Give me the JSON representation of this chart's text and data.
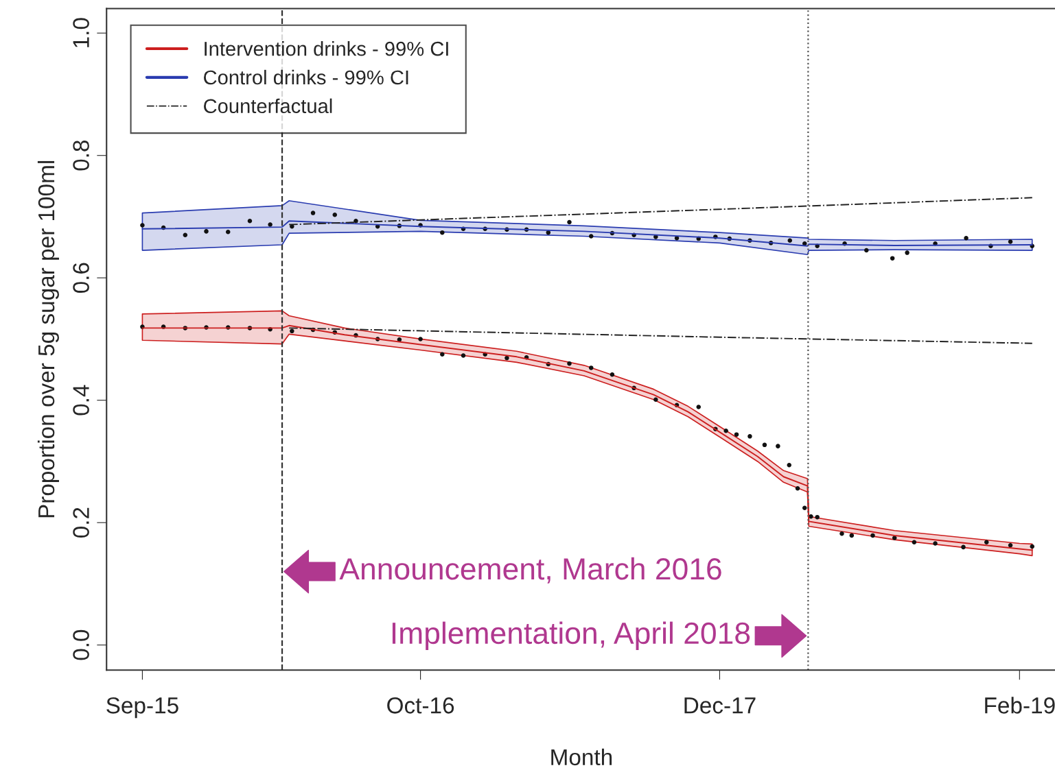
{
  "chart_data": {
    "type": "line",
    "xlabel": "Month",
    "ylabel": "Proportion over 5g sugar per 100ml",
    "xlim": [
      "2015-07-12",
      "2019-03-25"
    ],
    "xticks": [
      {
        "value": "2015-09-01",
        "label": "Sep-15"
      },
      {
        "value": "2016-10-01",
        "label": "Oct-16"
      },
      {
        "value": "2017-12-01",
        "label": "Dec-17"
      },
      {
        "value": "2019-02-01",
        "label": "Feb-19"
      }
    ],
    "ylim": [
      -0.041,
      1.04
    ],
    "yticks": [
      {
        "value": 0,
        "label": "0.0"
      },
      0.2,
      0.4,
      0.6,
      0.8,
      {
        "value": 1,
        "label": "1.0"
      }
    ],
    "grid": false,
    "legend": "top left",
    "series": [
      {
        "name": "Intervention drinks - 99% CI",
        "color": "#cc1f1f",
        "line_style": "solid",
        "x": [
          "2015-09-01",
          "2016-03-18",
          "2016-03-28",
          "2016-06-15",
          "2016-10-01",
          "2017-02-15",
          "2017-05-22",
          "2017-08-29",
          "2017-10-17",
          "2017-12-01",
          "2018-01-24",
          "2018-03-02",
          "2018-04-05",
          "2018-04-07",
          "2018-08-07",
          "2019-02-01",
          "2019-02-19"
        ],
        "values": [
          0.518,
          0.518,
          0.522,
          0.507,
          0.491,
          0.471,
          0.448,
          0.409,
          0.381,
          0.348,
          0.308,
          0.275,
          0.26,
          0.202,
          0.179,
          0.157,
          0.155
        ],
        "lower": [
          0.498,
          0.492,
          0.508,
          0.497,
          0.482,
          0.462,
          0.44,
          0.401,
          0.373,
          0.34,
          0.3,
          0.266,
          0.25,
          0.194,
          0.172,
          0.149,
          0.146
        ],
        "upper": [
          0.541,
          0.546,
          0.538,
          0.518,
          0.5,
          0.48,
          0.457,
          0.418,
          0.39,
          0.357,
          0.317,
          0.285,
          0.272,
          0.21,
          0.187,
          0.166,
          0.165
        ]
      },
      {
        "name": "Control drinks - 99% CI",
        "color": "#2a3cb0",
        "line_style": "solid",
        "x": [
          "2015-09-01",
          "2016-03-18",
          "2016-03-28",
          "2016-10-01",
          "2017-05-22",
          "2017-12-01",
          "2018-04-05",
          "2018-04-07",
          "2018-08-07",
          "2019-02-19"
        ],
        "values": [
          0.68,
          0.683,
          0.693,
          0.684,
          0.676,
          0.665,
          0.652,
          0.655,
          0.653,
          0.654
        ],
        "lower": [
          0.645,
          0.654,
          0.673,
          0.676,
          0.668,
          0.657,
          0.638,
          0.645,
          0.646,
          0.645
        ],
        "upper": [
          0.706,
          0.718,
          0.726,
          0.694,
          0.685,
          0.674,
          0.665,
          0.663,
          0.661,
          0.663
        ]
      },
      {
        "type": "line",
        "name": "Counterfactual",
        "color": "#222222",
        "line_style": "dashdot",
        "x": [
          "2016-03-28",
          "2017-12-01",
          "2019-02-19"
        ],
        "values": [
          0.687,
          0.712,
          0.731
        ]
      },
      {
        "type": "line",
        "color": "#222222",
        "line_style": "dashdot",
        "x": [
          "2016-03-28",
          "2017-12-01",
          "2019-02-19"
        ],
        "values": [
          0.518,
          0.503,
          0.493
        ]
      },
      {
        "type": "scatter",
        "color": "#111111",
        "x": [
          "2015-09-01",
          "2015-10-01",
          "2015-11-01",
          "2015-12-01",
          "2016-01-01",
          "2016-02-01",
          "2016-03-01",
          "2016-04-01",
          "2016-05-01",
          "2016-06-01",
          "2016-07-01",
          "2016-08-01",
          "2016-09-01",
          "2016-10-01",
          "2016-11-01",
          "2016-12-01",
          "2017-01-01",
          "2017-02-01",
          "2017-03-01",
          "2017-04-01",
          "2017-05-01",
          "2017-06-01",
          "2017-07-01",
          "2017-08-01",
          "2017-09-01",
          "2017-10-01",
          "2017-11-01",
          "2017-11-25",
          "2017-12-10",
          "2017-12-25",
          "2018-01-13",
          "2018-02-03",
          "2018-02-22",
          "2018-03-10",
          "2018-03-22",
          "2018-04-01",
          "2018-04-10",
          "2018-04-19",
          "2018-05-24",
          "2018-06-07",
          "2018-07-07",
          "2018-08-07",
          "2018-09-04",
          "2018-10-04",
          "2018-11-13",
          "2018-12-16",
          "2019-01-19",
          "2019-02-19"
        ],
        "values": [
          0.52,
          0.52,
          0.518,
          0.519,
          0.519,
          0.518,
          0.516,
          0.513,
          0.515,
          0.511,
          0.506,
          0.5,
          0.499,
          0.5,
          0.475,
          0.473,
          0.475,
          0.469,
          0.47,
          0.459,
          0.46,
          0.453,
          0.442,
          0.42,
          0.401,
          0.392,
          0.389,
          0.353,
          0.35,
          0.344,
          0.341,
          0.327,
          0.325,
          0.294,
          0.256,
          0.224,
          0.21,
          0.209,
          0.182,
          0.179,
          0.179,
          0.175,
          0.168,
          0.166,
          0.16,
          0.168,
          0.163,
          0.161
        ]
      },
      {
        "type": "scatter",
        "color": "#111111",
        "x": [
          "2015-09-01",
          "2015-10-01",
          "2015-11-01",
          "2015-12-01",
          "2016-01-01",
          "2016-02-01",
          "2016-03-01",
          "2016-04-01",
          "2016-05-01",
          "2016-06-01",
          "2016-07-01",
          "2016-08-01",
          "2016-09-01",
          "2016-10-01",
          "2016-11-01",
          "2016-12-01",
          "2017-01-01",
          "2017-02-01",
          "2017-03-01",
          "2017-04-01",
          "2017-05-01",
          "2017-06-01",
          "2017-07-01",
          "2017-08-01",
          "2017-09-01",
          "2017-10-01",
          "2017-11-01",
          "2017-11-25",
          "2017-12-15",
          "2018-01-13",
          "2018-02-12",
          "2018-03-11",
          "2018-04-01",
          "2018-04-19",
          "2018-05-28",
          "2018-06-28",
          "2018-08-04",
          "2018-08-25",
          "2018-10-04",
          "2018-11-17",
          "2018-12-22",
          "2019-01-19",
          "2019-02-19"
        ],
        "values": [
          0.686,
          0.682,
          0.67,
          0.676,
          0.675,
          0.693,
          0.687,
          0.684,
          0.706,
          0.703,
          0.693,
          0.684,
          0.685,
          0.686,
          0.674,
          0.68,
          0.68,
          0.679,
          0.679,
          0.674,
          0.691,
          0.668,
          0.673,
          0.67,
          0.667,
          0.665,
          0.664,
          0.667,
          0.664,
          0.661,
          0.657,
          0.661,
          0.656,
          0.652,
          0.656,
          0.645,
          0.632,
          0.641,
          0.656,
          0.665,
          0.652,
          0.659,
          0.652
        ]
      }
    ],
    "ref_lines": [
      {
        "axis": "x",
        "value": "2016-03-18",
        "color": "#333333",
        "line_style": "dashed"
      },
      {
        "axis": "x",
        "value": "2018-04-06",
        "color": "#555555",
        "line_style": "dotted"
      }
    ],
    "annotations": [
      {
        "text": "Announcement, March 2016",
        "x": "2016-03-18",
        "y": 0.12
      },
      {
        "text": "Implementation, April 2018",
        "x": "2018-04-06",
        "y": 0.015
      }
    ]
  }
}
